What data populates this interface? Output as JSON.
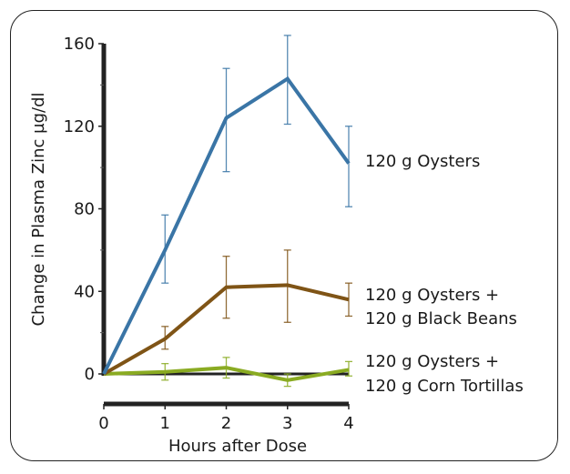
{
  "chart_data": {
    "type": "line",
    "title": "",
    "xlabel": "Hours after Dose",
    "ylabel": "Change in Plasma Zinc µg/dl",
    "x": [
      0,
      1,
      2,
      3,
      4
    ],
    "xlim": [
      0,
      4
    ],
    "ylim": [
      0,
      160
    ],
    "x_ticks": [
      "0",
      "1",
      "2",
      "3",
      "4"
    ],
    "y_ticks": [
      "0",
      "40",
      "80",
      "120",
      "160"
    ],
    "y_tick_values": [
      0,
      40,
      80,
      120,
      160
    ],
    "y_minor_tick_values": [
      20,
      60,
      100,
      140
    ],
    "grid": false,
    "legend_placement": "right",
    "series": [
      {
        "name": "120 g Oysters",
        "label_lines": [
          "120 g Oysters"
        ],
        "color": "#3a75a6",
        "values": [
          0,
          60,
          124,
          143,
          102
        ],
        "err_low": [
          null,
          44,
          98,
          121,
          81
        ],
        "err_high": [
          null,
          77,
          148,
          164,
          120
        ]
      },
      {
        "name": "120 g Oysters + 120 g Black Beans",
        "label_lines": [
          "120 g Oysters +",
          "120 g Black Beans"
        ],
        "color": "#7f5416",
        "values": [
          0,
          17,
          42,
          43,
          36
        ],
        "err_low": [
          null,
          12,
          27,
          25,
          28
        ],
        "err_high": [
          null,
          23,
          57,
          60,
          44
        ]
      },
      {
        "name": "120 g Oysters + 120 g Corn Tortillas",
        "label_lines": [
          "120 g Oysters +",
          "120 g Corn Tortillas"
        ],
        "color": "#8aab22",
        "values": [
          0,
          1,
          3,
          -3,
          2
        ],
        "err_low": [
          null,
          -3,
          -2,
          -6,
          -1
        ],
        "err_high": [
          null,
          5,
          8,
          0,
          6
        ]
      }
    ]
  }
}
